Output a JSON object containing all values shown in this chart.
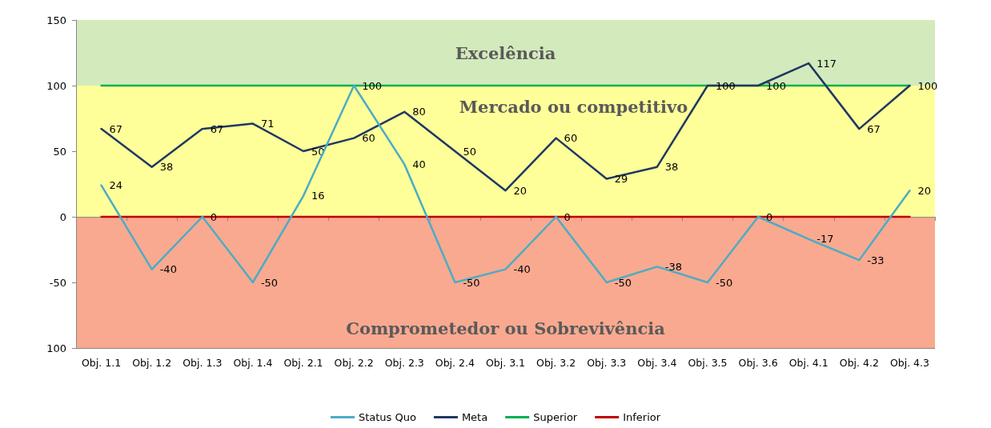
{
  "chart_data": {
    "type": "line",
    "categories": [
      "Obj. 1.1",
      "Obj. 1.2",
      "Obj. 1.3",
      "Obj. 1.4",
      "Obj. 2.1",
      "Obj. 2.2",
      "Obj. 2.3",
      "Obj. 2.4",
      "Obj. 3.1",
      "Obj. 3.2",
      "Obj. 3.3",
      "Obj. 3.4",
      "Obj. 3.5",
      "Obj. 3.6",
      "Obj. 4.1",
      "Obj. 4.2",
      "Obj. 4.3"
    ],
    "series": [
      {
        "name": "Status Quo",
        "color": "#4bacc6",
        "values": [
          24,
          -40,
          0,
          -50,
          16,
          100,
          40,
          -50,
          -40,
          0,
          -50,
          -38,
          -50,
          0,
          -17,
          -33,
          20
        ],
        "value_labels": [
          "24",
          "-40",
          "0",
          "-50",
          "16",
          "100",
          "40",
          "-50",
          "-40",
          "0",
          "-50",
          "-38",
          "-50",
          "0",
          "-17",
          "-33",
          "20"
        ]
      },
      {
        "name": "Meta",
        "color": "#1f3864",
        "values": [
          67,
          38,
          67,
          71,
          50,
          60,
          80,
          50,
          20,
          60,
          29,
          38,
          100,
          100,
          117,
          67,
          100
        ],
        "value_labels": [
          "67",
          "38",
          "67",
          "71",
          "50",
          "60",
          "80",
          "50",
          "20",
          "60",
          "29",
          "38",
          "100",
          "100",
          "117",
          "67",
          "100"
        ]
      },
      {
        "name": "Superior",
        "color": "#00b050",
        "values": [
          100,
          100,
          100,
          100,
          100,
          100,
          100,
          100,
          100,
          100,
          100,
          100,
          100,
          100,
          100,
          100,
          100
        ]
      },
      {
        "name": "Inferior",
        "color": "#c00000",
        "values": [
          0,
          0,
          0,
          0,
          0,
          0,
          0,
          0,
          0,
          0,
          0,
          0,
          0,
          0,
          0,
          0,
          0
        ]
      }
    ],
    "ylim": [
      -100,
      150
    ],
    "yticks": [
      {
        "value": -100,
        "label": "100"
      },
      -50,
      0,
      50,
      100,
      150
    ],
    "bands": [
      {
        "axis": "y",
        "from": 100,
        "to": 150,
        "label": "Excelência",
        "color": "#d3eabc"
      },
      {
        "axis": "y",
        "from": 0,
        "to": 100,
        "label": "Mercado ou competitivo",
        "color": "#ffff99"
      },
      {
        "axis": "y",
        "from": -100,
        "to": 0,
        "label": "Comprometedor ou Sobrevivência",
        "color": "#f9a98f"
      }
    ],
    "grid": "y",
    "legend": "bottom",
    "marker": "none",
    "line_style": "solid"
  }
}
